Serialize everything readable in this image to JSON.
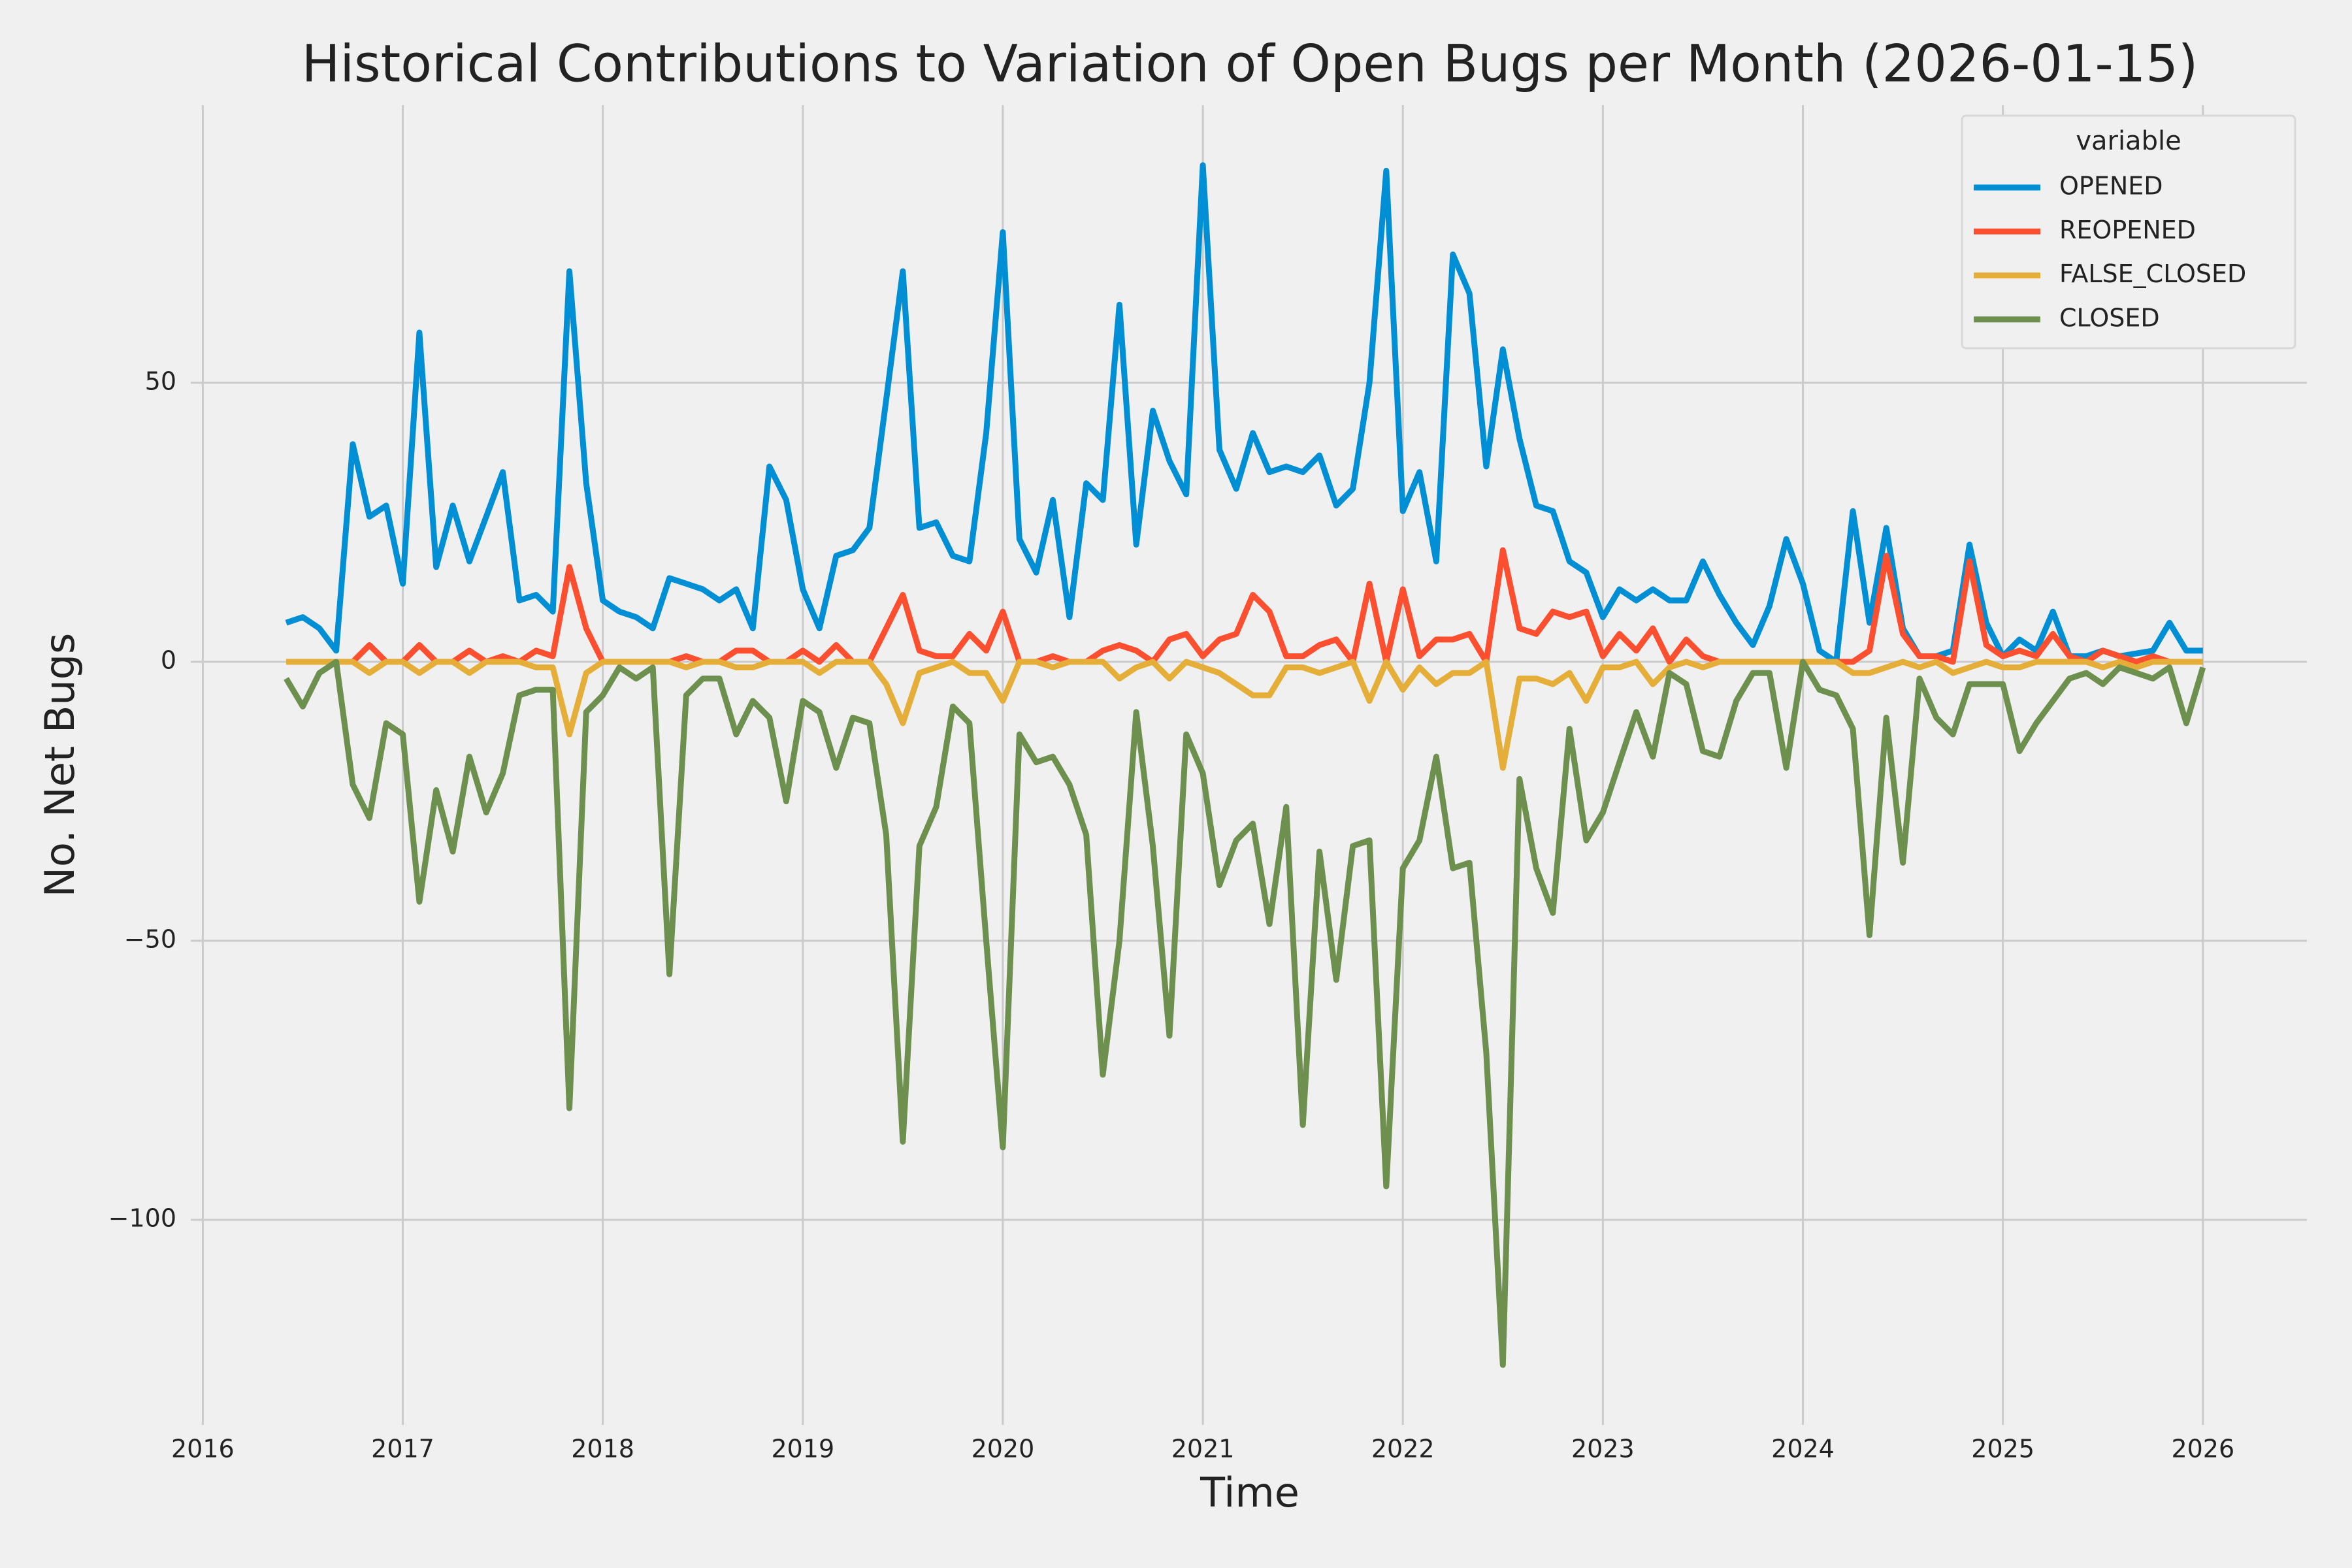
{
  "chart_data": {
    "type": "line",
    "title": "Historical Contributions to Variation of Open Bugs per Month (2026-01-15)",
    "x_label": "Time",
    "y_label": "No. Net Bugs",
    "legend_title": "variable",
    "legend": "upper right",
    "grid": true,
    "xlim": [
      2015.94,
      2026.52
    ],
    "ylim": [
      -136.75,
      99.75
    ],
    "xticks": [
      2016,
      2017,
      2018,
      2019,
      2020,
      2021,
      2022,
      2023,
      2024,
      2025,
      2026
    ],
    "yticks": [
      {
        "value": -100,
        "label": "−100"
      },
      {
        "value": -50,
        "label": "−50"
      },
      0,
      50
    ],
    "x": [
      2016.417,
      2016.5,
      2016.583,
      2016.667,
      2016.75,
      2016.833,
      2016.917,
      2017.0,
      2017.083,
      2017.167,
      2017.25,
      2017.333,
      2017.417,
      2017.5,
      2017.583,
      2017.667,
      2017.75,
      2017.833,
      2017.917,
      2018.0,
      2018.083,
      2018.167,
      2018.25,
      2018.333,
      2018.417,
      2018.5,
      2018.583,
      2018.667,
      2018.75,
      2018.833,
      2018.917,
      2019.0,
      2019.083,
      2019.167,
      2019.25,
      2019.333,
      2019.417,
      2019.5,
      2019.583,
      2019.667,
      2019.75,
      2019.833,
      2019.917,
      2020.0,
      2020.083,
      2020.167,
      2020.25,
      2020.333,
      2020.417,
      2020.5,
      2020.583,
      2020.667,
      2020.75,
      2020.833,
      2020.917,
      2021.0,
      2021.083,
      2021.167,
      2021.25,
      2021.333,
      2021.417,
      2021.5,
      2021.583,
      2021.667,
      2021.75,
      2021.833,
      2021.917,
      2022.0,
      2022.083,
      2022.167,
      2022.25,
      2022.333,
      2022.417,
      2022.5,
      2022.583,
      2022.667,
      2022.75,
      2022.833,
      2022.917,
      2023.0,
      2023.083,
      2023.167,
      2023.25,
      2023.333,
      2023.417,
      2023.5,
      2023.583,
      2023.667,
      2023.75,
      2023.833,
      2023.917,
      2024.0,
      2024.083,
      2024.167,
      2024.25,
      2024.333,
      2024.417,
      2024.5,
      2024.583,
      2024.667,
      2024.75,
      2024.833,
      2024.917,
      2025.0,
      2025.083,
      2025.167,
      2025.25,
      2025.333,
      2025.417,
      2025.5,
      2025.583,
      2025.667,
      2025.75,
      2025.833,
      2025.917,
      2026.0
    ],
    "series": [
      {
        "name": "OPENED",
        "color": "#008fd5",
        "values": [
          7,
          8,
          6,
          2,
          39,
          26,
          28,
          14,
          59,
          17,
          28,
          18,
          26,
          34,
          11,
          12,
          9,
          70,
          32,
          11,
          9,
          8,
          6,
          15,
          14,
          13,
          11,
          13,
          6,
          35,
          29,
          13,
          6,
          19,
          20,
          24,
          47,
          70,
          24,
          25,
          19,
          18,
          41,
          77,
          22,
          16,
          29,
          8,
          32,
          29,
          64,
          21,
          45,
          36,
          30,
          89,
          38,
          31,
          41,
          34,
          35,
          34,
          37,
          28,
          31,
          50,
          88,
          27,
          34,
          18,
          73,
          66,
          35,
          56,
          40,
          28,
          27,
          18,
          16,
          8,
          13,
          11,
          13,
          11,
          11,
          18,
          12,
          7,
          3,
          10,
          22,
          14,
          2,
          0,
          27,
          7,
          24,
          6,
          1,
          1,
          2,
          21,
          7,
          1,
          4,
          2,
          9,
          1,
          1,
          2,
          1,
          1.5,
          2,
          7,
          2,
          2
        ]
      },
      {
        "name": "REOPENED",
        "color": "#fc4f30",
        "values": [
          0,
          0,
          0,
          0,
          0,
          3,
          0,
          0,
          3,
          0,
          0,
          2,
          0,
          1,
          0,
          2,
          1,
          17,
          6,
          0,
          0,
          0,
          0,
          0,
          1,
          0,
          0,
          2,
          2,
          0,
          0,
          2,
          0,
          3,
          0,
          0,
          6,
          12,
          2,
          1,
          1,
          5,
          2,
          9,
          0,
          0,
          1,
          0,
          0,
          2,
          3,
          2,
          0,
          4,
          5,
          1,
          4,
          5,
          12,
          9,
          1,
          1,
          3,
          4,
          0,
          14,
          0,
          13,
          1,
          4,
          4,
          5,
          0,
          20,
          6,
          5,
          9,
          8,
          9,
          1,
          5,
          2,
          6,
          0,
          4,
          1,
          0,
          0,
          0,
          0,
          0,
          0,
          0,
          0,
          0,
          2,
          19,
          5,
          1,
          1,
          0,
          18,
          3,
          1,
          2,
          1,
          5,
          1,
          0,
          2,
          1,
          0,
          1,
          0,
          0,
          0
        ]
      },
      {
        "name": "FALSE_CLOSED",
        "color": "#e5ae38",
        "values": [
          0,
          0,
          0,
          0,
          0,
          -2,
          0,
          0,
          -2,
          0,
          0,
          -2,
          0,
          0,
          0,
          -1,
          -1,
          -13,
          -2,
          0,
          0,
          0,
          0,
          0,
          -1,
          0,
          0,
          -1,
          -1,
          0,
          0,
          0,
          -2,
          0,
          0,
          0,
          -4,
          -11,
          -2,
          -1,
          0,
          -2,
          -2,
          -7,
          0,
          0,
          -1,
          0,
          0,
          0,
          -3,
          -1,
          0,
          -3,
          0,
          -1,
          -2,
          -4,
          -6,
          -6,
          -1,
          -1,
          -2,
          -1,
          0,
          -7,
          0,
          -5,
          -1,
          -4,
          -2,
          -2,
          0,
          -19,
          -3,
          -3,
          -4,
          -2,
          -7,
          -1,
          -1,
          0,
          -4,
          -1,
          0,
          -1,
          0,
          0,
          0,
          0,
          0,
          0,
          0,
          0,
          -2,
          -2,
          -1,
          0,
          -1,
          0,
          -2,
          -1,
          0,
          -1,
          -1,
          0,
          0,
          0,
          0,
          -1,
          0,
          -1,
          0,
          0,
          0,
          0
        ]
      },
      {
        "name": "CLOSED",
        "color": "#6d904f",
        "values": [
          -3,
          -8,
          -2,
          0,
          -22,
          -28,
          -11,
          -13,
          -43,
          -23,
          -34,
          -17,
          -27,
          -20,
          -6,
          -5,
          -5,
          -80,
          -9,
          -6,
          -1,
          -3,
          -1,
          -56,
          -6,
          -3,
          -3,
          -13,
          -7,
          -10,
          -25,
          -7,
          -9,
          -19,
          -10,
          -11,
          -31,
          -86,
          -33,
          -26,
          -8,
          -11,
          -50,
          -87,
          -13,
          -18,
          -17,
          -22,
          -31,
          -74,
          -50,
          -9,
          -33,
          -67,
          -13,
          -20,
          -40,
          -32,
          -29,
          -47,
          -26,
          -83,
          -34,
          -57,
          -33,
          -32,
          -94,
          -37,
          -32,
          -17,
          -37,
          -36,
          -70,
          -126,
          -21,
          -37,
          -45,
          -12,
          -32,
          -27,
          -18,
          -9,
          -17,
          -2,
          -4,
          -16,
          -17,
          -7,
          -2,
          -2,
          -19,
          0,
          -5,
          -6,
          -12,
          -49,
          -10,
          -36,
          -3,
          -10,
          -13,
          -4,
          -4,
          -4,
          -16,
          -11,
          -7,
          -3,
          -2,
          -4,
          -1,
          -2,
          -3,
          -1,
          -11,
          -1
        ]
      }
    ]
  }
}
